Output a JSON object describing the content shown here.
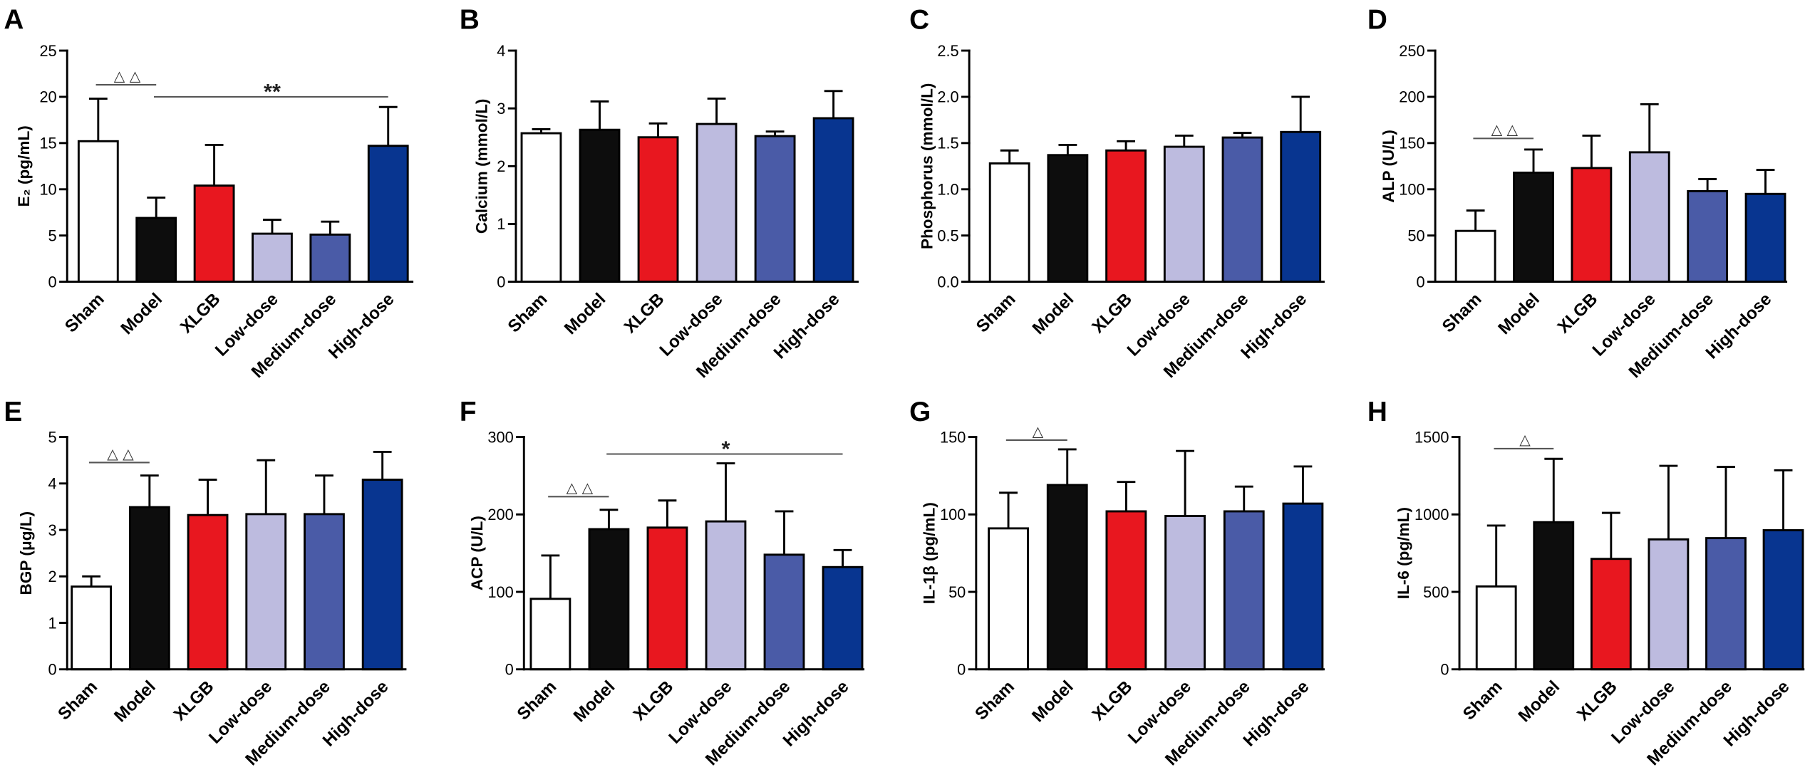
{
  "series_colors": [
    "#ffffff",
    "#0d0d0d",
    "#e8171f",
    "#bdbbdf",
    "#4a5ba7",
    "#083590"
  ],
  "chart_data": [
    {
      "panel": "A",
      "type": "bar",
      "categories": [
        "Sham",
        "Model",
        "XLGB",
        "Low-dose",
        "Medium-dose",
        "High-dose"
      ],
      "values": [
        15.2,
        6.9,
        10.4,
        5.2,
        5.1,
        14.7
      ],
      "error": [
        4.6,
        2.2,
        4.4,
        1.5,
        1.4,
        4.2
      ],
      "ylabel": "E₂ (pg/mL)",
      "ylim": [
        0,
        25
      ],
      "yticks": [
        "0",
        "5",
        "10",
        "15",
        "20",
        "25"
      ],
      "annotations": [
        {
          "label": "△ △",
          "from": 0,
          "to": 1,
          "y": 21.3
        },
        {
          "label": "**",
          "from": 1,
          "to": 5,
          "y": 20.0
        }
      ]
    },
    {
      "panel": "B",
      "type": "bar",
      "categories": [
        "Sham",
        "Model",
        "XLGB",
        "Low-dose",
        "Medium-dose",
        "High-dose"
      ],
      "values": [
        2.57,
        2.63,
        2.5,
        2.73,
        2.52,
        2.83
      ],
      "error": [
        0.07,
        0.49,
        0.24,
        0.44,
        0.08,
        0.47
      ],
      "ylabel": "Calcium (mmol/L)",
      "ylim": [
        0,
        4
      ],
      "yticks": [
        "0",
        "1",
        "2",
        "3",
        "4"
      ],
      "annotations": []
    },
    {
      "panel": "C",
      "type": "bar",
      "categories": [
        "Sham",
        "Model",
        "XLGB",
        "Low-dose",
        "Medium-dose",
        "High-dose"
      ],
      "values": [
        1.28,
        1.37,
        1.42,
        1.46,
        1.56,
        1.62
      ],
      "error": [
        0.14,
        0.11,
        0.1,
        0.12,
        0.05,
        0.38
      ],
      "ylabel": "Phosphorus (mmol/L)",
      "ylim": [
        0,
        2.5
      ],
      "yticks": [
        "0.0",
        "0.5",
        "1.0",
        "1.5",
        "2.0",
        "2.5"
      ],
      "annotations": []
    },
    {
      "panel": "D",
      "type": "bar",
      "categories": [
        "Sham",
        "Model",
        "XLGB",
        "Low-dose",
        "Medium-dose",
        "High-dose"
      ],
      "values": [
        55,
        118,
        123,
        140,
        98,
        95
      ],
      "error": [
        22,
        25,
        35,
        52,
        13,
        26
      ],
      "ylabel": "ALP (U/L)",
      "ylim": [
        0,
        250
      ],
      "yticks": [
        "0",
        "50",
        "100",
        "150",
        "200",
        "250"
      ],
      "annotations": [
        {
          "label": "△ △",
          "from": 0,
          "to": 1,
          "y": 155
        }
      ]
    },
    {
      "panel": "E",
      "type": "bar",
      "categories": [
        "Sham",
        "Model",
        "XLGB",
        "Low-dose",
        "Medium-dose",
        "High-dose"
      ],
      "values": [
        1.78,
        3.49,
        3.32,
        3.34,
        3.34,
        4.08
      ],
      "error": [
        0.22,
        0.68,
        0.76,
        1.16,
        0.83,
        0.6
      ],
      "ylabel": "BGP (μg/L)",
      "ylim": [
        0,
        5
      ],
      "yticks": [
        "0",
        "1",
        "2",
        "3",
        "4",
        "5"
      ],
      "annotations": [
        {
          "label": "△ △",
          "from": 0,
          "to": 1,
          "y": 4.45
        }
      ]
    },
    {
      "panel": "F",
      "type": "bar",
      "categories": [
        "Sham",
        "Model",
        "XLGB",
        "Low-dose",
        "Medium-dose",
        "High-dose"
      ],
      "values": [
        91,
        181,
        183,
        191,
        148,
        132
      ],
      "error": [
        56,
        25,
        35,
        75,
        56,
        22
      ],
      "ylabel": "ACP (U/L)",
      "ylim": [
        0,
        300
      ],
      "yticks": [
        "0",
        "100",
        "200",
        "300"
      ],
      "annotations": [
        {
          "label": "△ △",
          "from": 0,
          "to": 1,
          "y": 223
        },
        {
          "label": "*",
          "from": 1,
          "to": 5,
          "y": 278
        }
      ]
    },
    {
      "panel": "G",
      "type": "bar",
      "categories": [
        "Sham",
        "Model",
        "XLGB",
        "Low-dose",
        "Medium-dose",
        "High-dose"
      ],
      "values": [
        91,
        119,
        102,
        99,
        102,
        107
      ],
      "error": [
        23,
        23,
        19,
        42,
        16,
        24
      ],
      "ylabel": "IL-1β (pg/mL)",
      "ylim": [
        0,
        150
      ],
      "yticks": [
        "0",
        "50",
        "100",
        "150"
      ],
      "annotations": [
        {
          "label": "△",
          "from": 0,
          "to": 1,
          "y": 148
        }
      ]
    },
    {
      "panel": "H",
      "type": "bar",
      "categories": [
        "Sham",
        "Model",
        "XLGB",
        "Low-dose",
        "Medium-dose",
        "High-dose"
      ],
      "values": [
        535,
        950,
        713,
        839,
        847,
        898
      ],
      "error": [
        393,
        409,
        297,
        475,
        460,
        387
      ],
      "ylabel": "IL-6 (pg/mL)",
      "ylim": [
        0,
        1500
      ],
      "yticks": [
        "0",
        "500",
        "1000",
        "1500"
      ],
      "annotations": [
        {
          "label": "△",
          "from": 0,
          "to": 1,
          "y": 1425
        }
      ]
    }
  ]
}
